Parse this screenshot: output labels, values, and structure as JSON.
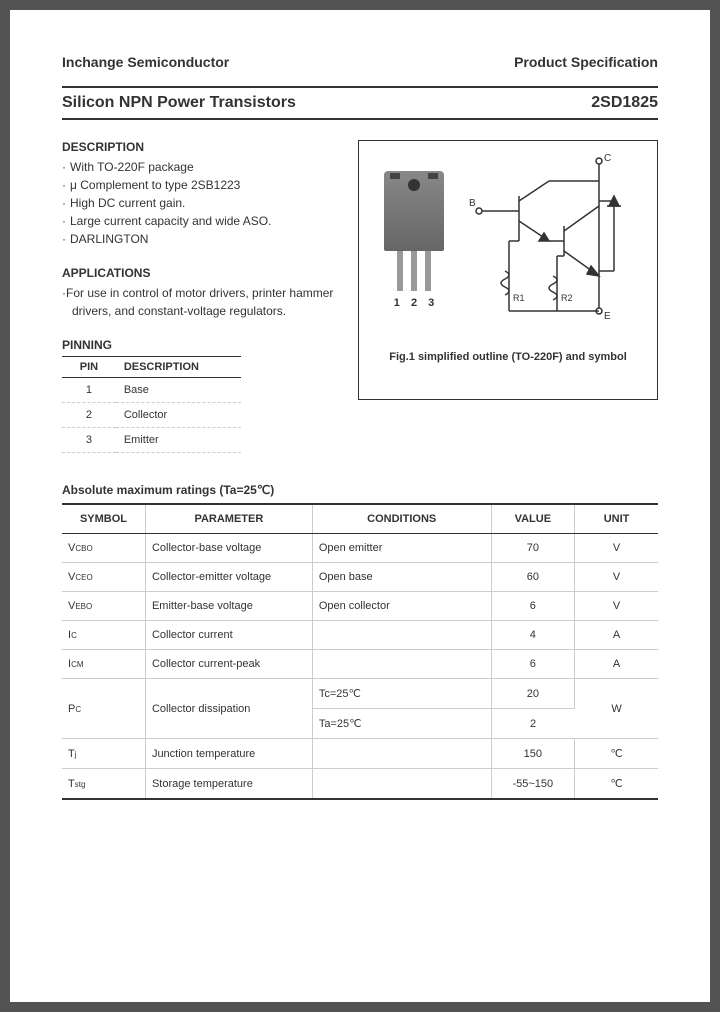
{
  "header": {
    "company": "Inchange Semiconductor",
    "doctype": "Product Specification"
  },
  "title": {
    "left": "Silicon NPN Power Transistors",
    "right": "2SD1825"
  },
  "description": {
    "heading": "DESCRIPTION",
    "items": [
      "With TO-220F package",
      "μ  Complement to type 2SB1223",
      "High DC current gain.",
      "Large current capacity and wide ASO.",
      "DARLINGTON"
    ]
  },
  "applications": {
    "heading": "APPLICATIONS",
    "text": "·For use in control of motor drivers, printer hammer drivers, and constant-voltage regulators."
  },
  "pinning": {
    "heading": "PINNING",
    "columns": [
      "PIN",
      "DESCRIPTION"
    ],
    "rows": [
      [
        "1",
        "Base"
      ],
      [
        "2",
        "Collector"
      ],
      [
        "3",
        "Emitter"
      ]
    ]
  },
  "figure": {
    "pin_label": "1 2 3",
    "caption": "Fig.1 simplified outline (TO-220F) and symbol",
    "labels": {
      "b": "B",
      "c": "C",
      "e": "E",
      "r1": "R1",
      "r2": "R2"
    }
  },
  "ratings": {
    "heading": "Absolute maximum ratings (Ta=25℃)",
    "columns": [
      "SYMBOL",
      "PARAMETER",
      "CONDITIONS",
      "VALUE",
      "UNIT"
    ],
    "col_widths": [
      "14%",
      "28%",
      "30%",
      "14%",
      "14%"
    ],
    "rows": [
      {
        "symbol": "V",
        "sub": "CBO",
        "param": "Collector-base voltage",
        "cond": "Open emitter",
        "value": "70",
        "unit": "V",
        "rowspan": 1
      },
      {
        "symbol": "V",
        "sub": "CEO",
        "param": "Collector-emitter voltage",
        "cond": "Open base",
        "value": "60",
        "unit": "V",
        "rowspan": 1
      },
      {
        "symbol": "V",
        "sub": "EBO",
        "param": "Emitter-base voltage",
        "cond": "Open collector",
        "value": "6",
        "unit": "V",
        "rowspan": 1
      },
      {
        "symbol": "I",
        "sub": "C",
        "param": "Collector current",
        "cond": "",
        "value": "4",
        "unit": "A",
        "rowspan": 1
      },
      {
        "symbol": "I",
        "sub": "CM",
        "param": "Collector current-peak",
        "cond": "",
        "value": "6",
        "unit": "A",
        "rowspan": 1
      },
      {
        "symbol": "P",
        "sub": "C",
        "param": "Collector dissipation",
        "cond": "Tc=25℃",
        "value": "20",
        "unit": "W",
        "rowspan": 2
      },
      {
        "symbol": "",
        "sub": "",
        "param": "",
        "cond": "Ta=25℃",
        "value": "2",
        "unit": "",
        "rowspan": 0
      },
      {
        "symbol": "T",
        "sub": "j",
        "param": "Junction temperature",
        "cond": "",
        "value": "150",
        "unit": "℃",
        "rowspan": 1
      },
      {
        "symbol": "T",
        "sub": "stg",
        "param": "Storage temperature",
        "cond": "",
        "value": "-55~150",
        "unit": "℃",
        "rowspan": 1
      }
    ]
  },
  "colors": {
    "text": "#333333",
    "border": "#333333",
    "light_border": "#cccccc",
    "background": "#ffffff"
  }
}
